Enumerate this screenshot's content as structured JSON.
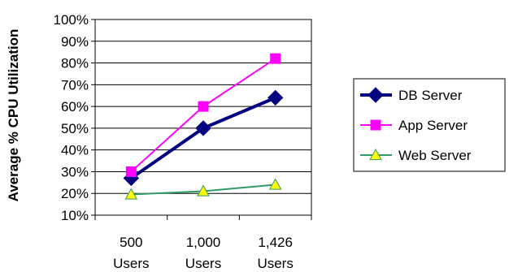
{
  "chart_data": {
    "type": "line",
    "ylabel": "Average % CPU Utilization",
    "xlabel": "",
    "categories": [
      [
        "500",
        "Users"
      ],
      [
        "1,000",
        "Users"
      ],
      [
        "1,426",
        "Users"
      ]
    ],
    "ylim": [
      10,
      100
    ],
    "yticks": [
      10,
      20,
      30,
      40,
      50,
      60,
      70,
      80,
      90,
      100
    ],
    "ytick_format": "percent",
    "grid": true,
    "legend": "right",
    "series": [
      {
        "name": "DB Server",
        "values": [
          27,
          50,
          64
        ],
        "color": "#000080",
        "marker": "diamond",
        "marker_fill": "#000080"
      },
      {
        "name": "App Server",
        "values": [
          30,
          60,
          82
        ],
        "color": "#ff00ff",
        "marker": "square",
        "marker_fill": "#ff00ff"
      },
      {
        "name": "Web Server",
        "values": [
          19.5,
          21,
          24
        ],
        "color": "#339966",
        "marker": "triangle",
        "marker_fill": "#ffff00"
      }
    ]
  }
}
